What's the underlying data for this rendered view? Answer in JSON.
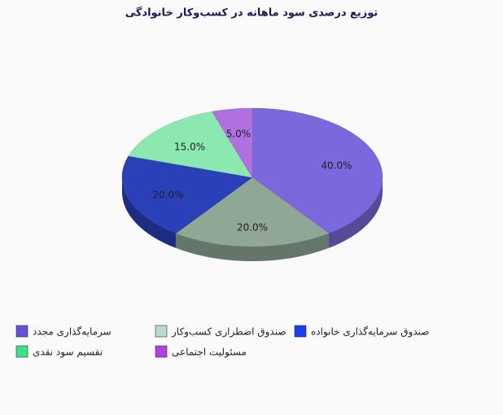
{
  "chart_data": {
    "type": "pie3d",
    "title": "توزیع درصدی سود ماهانه در کسب‌وکار خانوادگی",
    "categories": [
      "سرمایه‌گذاری مجدد",
      "صندوق اضطراری کسب‌وکار",
      "صندوق سرمایه‌گذاری خانواده",
      "تقسیم سود نقدی",
      "مسئولیت اجتماعی"
    ],
    "values": [
      40,
      20,
      20,
      15,
      5
    ],
    "value_labels": [
      "40.0%",
      "20.0%",
      "20.0%",
      "15.0%",
      "5.0%"
    ],
    "colors": [
      "#7a68dc",
      "#8fa896",
      "#2a40b8",
      "#8ae8b0",
      "#b070e0"
    ],
    "legend_colors": [
      "#6a4fd8",
      "#b8dcc8",
      "#1a3ff0",
      "#3de08a",
      "#b040e0"
    ]
  }
}
